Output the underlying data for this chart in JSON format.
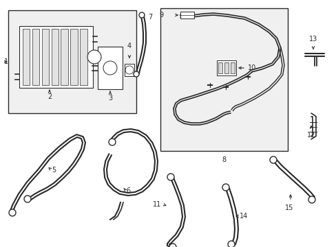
{
  "bg_color": "#ffffff",
  "line_color": "#2a2a2a",
  "box_fill": "#f0f0f0",
  "figsize": [
    4.89,
    3.6
  ],
  "dpi": 100
}
